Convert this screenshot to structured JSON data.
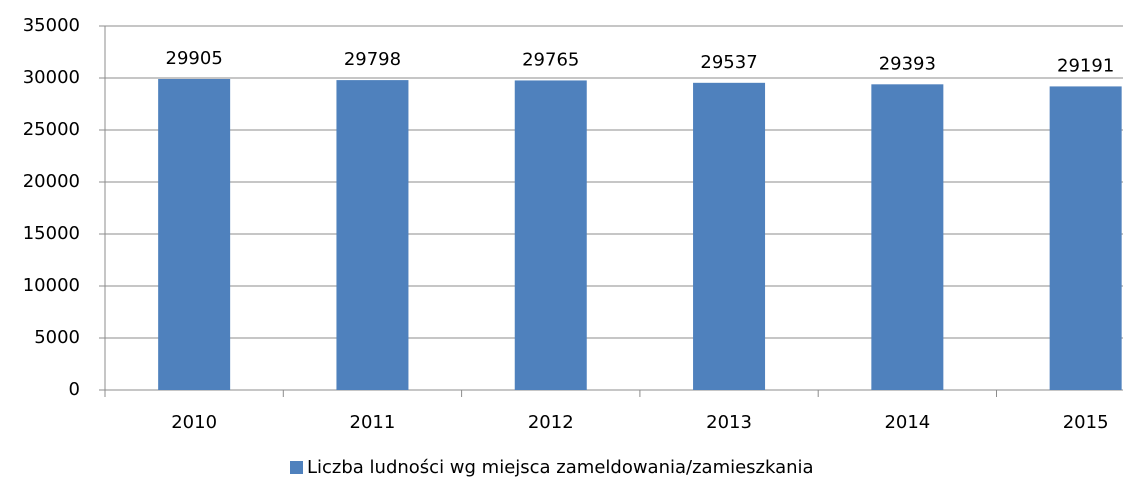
{
  "chart_data": {
    "type": "bar",
    "categories": [
      "2010",
      "2011",
      "2012",
      "2013",
      "2014",
      "2015"
    ],
    "series": [
      {
        "name": "Liczba ludności wg miejsca zameldowania/zamieszkania",
        "color": "#4f81bd",
        "values": [
          29905,
          29798,
          29765,
          29537,
          29393,
          29191
        ]
      }
    ],
    "ylim": [
      0,
      35000
    ],
    "yticks": [
      0,
      5000,
      10000,
      15000,
      20000,
      25000,
      30000,
      35000
    ],
    "grid": true,
    "legend": "bottom"
  }
}
